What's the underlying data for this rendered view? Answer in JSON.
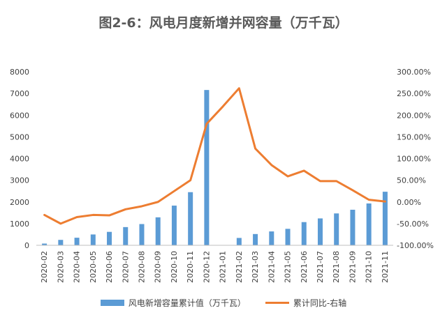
{
  "chart_data": {
    "type": "bar+line",
    "title": "图2-6：风电月度新增并网容量（万千瓦）",
    "categories": [
      "2020-02",
      "2020-03",
      "2020-04",
      "2020-05",
      "2020-06",
      "2020-07",
      "2020-08",
      "2020-09",
      "2020-10",
      "2020-11",
      "2020-12",
      "2021-01",
      "2021-02",
      "2021-03",
      "2021-04",
      "2021-05",
      "2021-06",
      "2021-07",
      "2021-08",
      "2021-09",
      "2021-10",
      "2021-11"
    ],
    "series": [
      {
        "name": "风电新增容量累计值（万千瓦）",
        "type": "bar",
        "axis": "left",
        "color": "#5b9bd5",
        "values": [
          80,
          250,
          350,
          500,
          620,
          840,
          980,
          1290,
          1830,
          2450,
          7160,
          null,
          340,
          520,
          640,
          760,
          1070,
          1240,
          1470,
          1640,
          1930,
          2470
        ]
      },
      {
        "name": "累计同比-右轴",
        "type": "line",
        "axis": "right",
        "color": "#ed7d31",
        "values": [
          -30,
          -50,
          -35,
          -30,
          -31,
          -17,
          -10,
          0,
          25,
          50,
          180,
          220,
          262,
          123,
          85,
          59,
          72,
          48,
          48,
          27,
          5,
          1
        ]
      }
    ],
    "left_axis": {
      "min": 0,
      "max": 8000,
      "step": 1000,
      "tick_labels": [
        "0",
        "1000",
        "2000",
        "3000",
        "4000",
        "5000",
        "6000",
        "7000",
        "8000"
      ]
    },
    "right_axis": {
      "min": -100,
      "max": 300,
      "step": 50,
      "tick_labels": [
        "-100.00%",
        "-50.00%",
        "0.00%",
        "50.00%",
        "100.00%",
        "150.00%",
        "200.00%",
        "250.00%",
        "300.00%"
      ]
    },
    "grid": false,
    "legend_position": "bottom"
  }
}
